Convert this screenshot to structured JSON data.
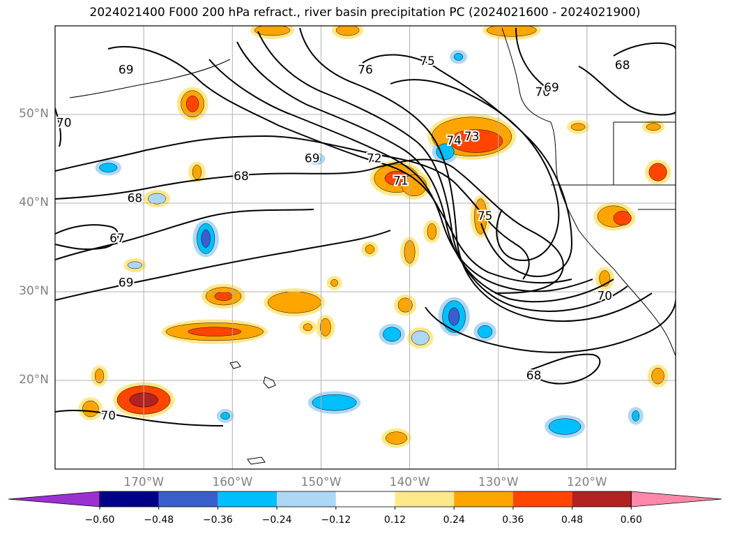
{
  "title": "2024021400 F000 200 hPa refract., river basin precipitation PC (2024021600 - 2024021900)",
  "latitude_labels": [
    {
      "text": "50°N",
      "lat": 50
    },
    {
      "text": "40°N",
      "lat": 40
    },
    {
      "text": "30°N",
      "lat": 30
    },
    {
      "text": "20°N",
      "lat": 20
    }
  ],
  "longitude_labels": [
    {
      "text": "170°W",
      "lon": -170
    },
    {
      "text": "160°W",
      "lon": -160
    },
    {
      "text": "150°W",
      "lon": -150
    },
    {
      "text": "140°W",
      "lon": -140
    },
    {
      "text": "130°W",
      "lon": -130
    },
    {
      "text": "120°W",
      "lon": -120
    }
  ],
  "contour_labels": [
    {
      "text": "69",
      "lon": -172,
      "lat": 55
    },
    {
      "text": "70",
      "lon": -179,
      "lat": 49
    },
    {
      "text": "76",
      "lon": -145,
      "lat": 55
    },
    {
      "text": "75",
      "lon": -138,
      "lat": 56
    },
    {
      "text": "70",
      "lon": -125,
      "lat": 52.5
    },
    {
      "text": "69",
      "lon": -124,
      "lat": 53
    },
    {
      "text": "68",
      "lon": -116,
      "lat": 55.5
    },
    {
      "text": "69",
      "lon": -151,
      "lat": 45
    },
    {
      "text": "72",
      "lon": -144,
      "lat": 45
    },
    {
      "text": "74",
      "lon": -135,
      "lat": 47
    },
    {
      "text": "73",
      "lon": -133,
      "lat": 47.5
    },
    {
      "text": "71",
      "lon": -141,
      "lat": 42.5
    },
    {
      "text": "68",
      "lon": -159,
      "lat": 43
    },
    {
      "text": "68",
      "lon": -171,
      "lat": 40.5
    },
    {
      "text": "75",
      "lon": -131.5,
      "lat": 38.5
    },
    {
      "text": "67",
      "lon": -173,
      "lat": 36
    },
    {
      "text": "69",
      "lon": -172,
      "lat": 31
    },
    {
      "text": "70",
      "lon": -118,
      "lat": 29.5
    },
    {
      "text": "68",
      "lon": -126,
      "lat": 20.5
    },
    {
      "text": "70",
      "lon": -174,
      "lat": 16
    }
  ],
  "colorbar": {
    "ticks": [
      "−0.60",
      "−0.48",
      "−0.36",
      "−0.24",
      "−0.12",
      "0.12",
      "0.24",
      "0.36",
      "0.48",
      "0.60"
    ],
    "colors": [
      "#9b30d0",
      "#00008b",
      "#3a5fcd",
      "#00bfff",
      "#add8f5",
      "#ffffff",
      "#ffe88a",
      "#ffa500",
      "#ff4500",
      "#b22222",
      "#ff88aa"
    ]
  }
}
